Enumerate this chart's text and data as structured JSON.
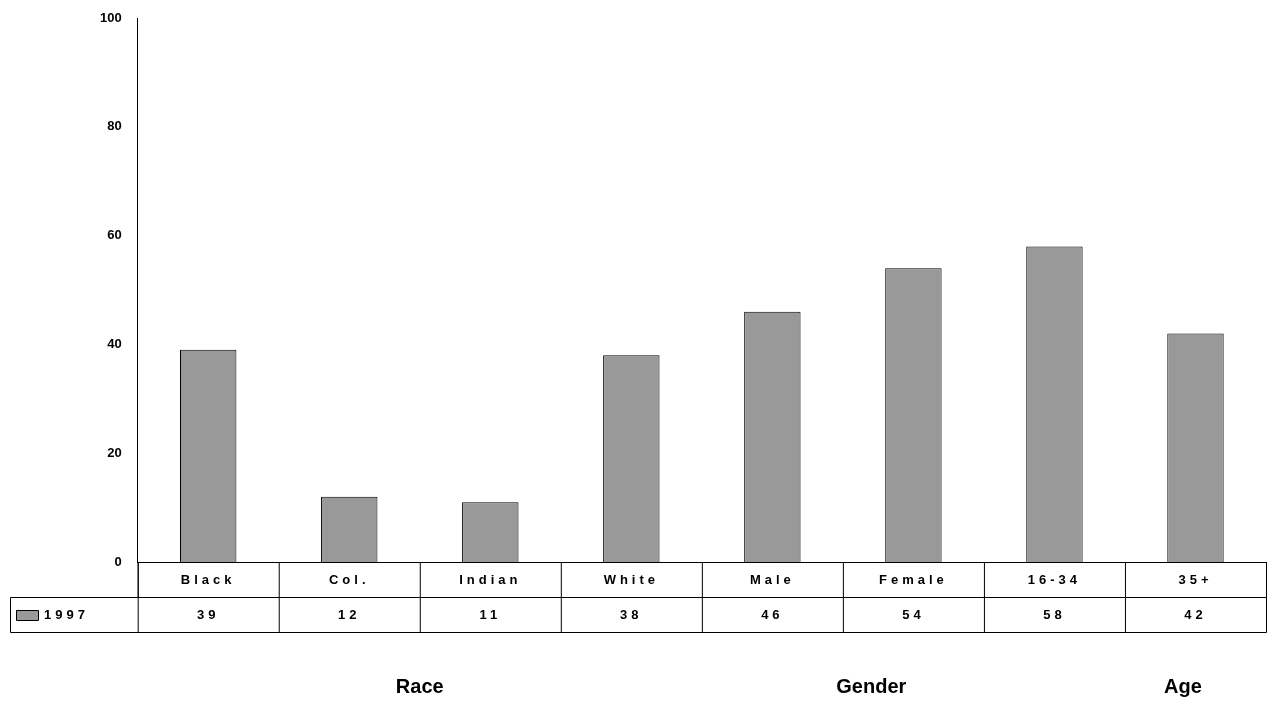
{
  "chart_data": {
    "type": "bar",
    "categories": [
      "Black",
      "Col.",
      "Indian",
      "White",
      "Male",
      "Female",
      "16-34",
      "35+"
    ],
    "series": [
      {
        "name": "1997",
        "color": "#999999",
        "values": [
          39,
          12,
          11,
          38,
          46,
          54,
          58,
          42
        ]
      }
    ],
    "ylim": [
      0,
      100
    ],
    "yticks": [
      0,
      20,
      40,
      60,
      80,
      100
    ],
    "grid": false,
    "legend": "bottom left",
    "data_labels": true,
    "annotations": [
      "Race",
      "Gender",
      "Age"
    ]
  }
}
